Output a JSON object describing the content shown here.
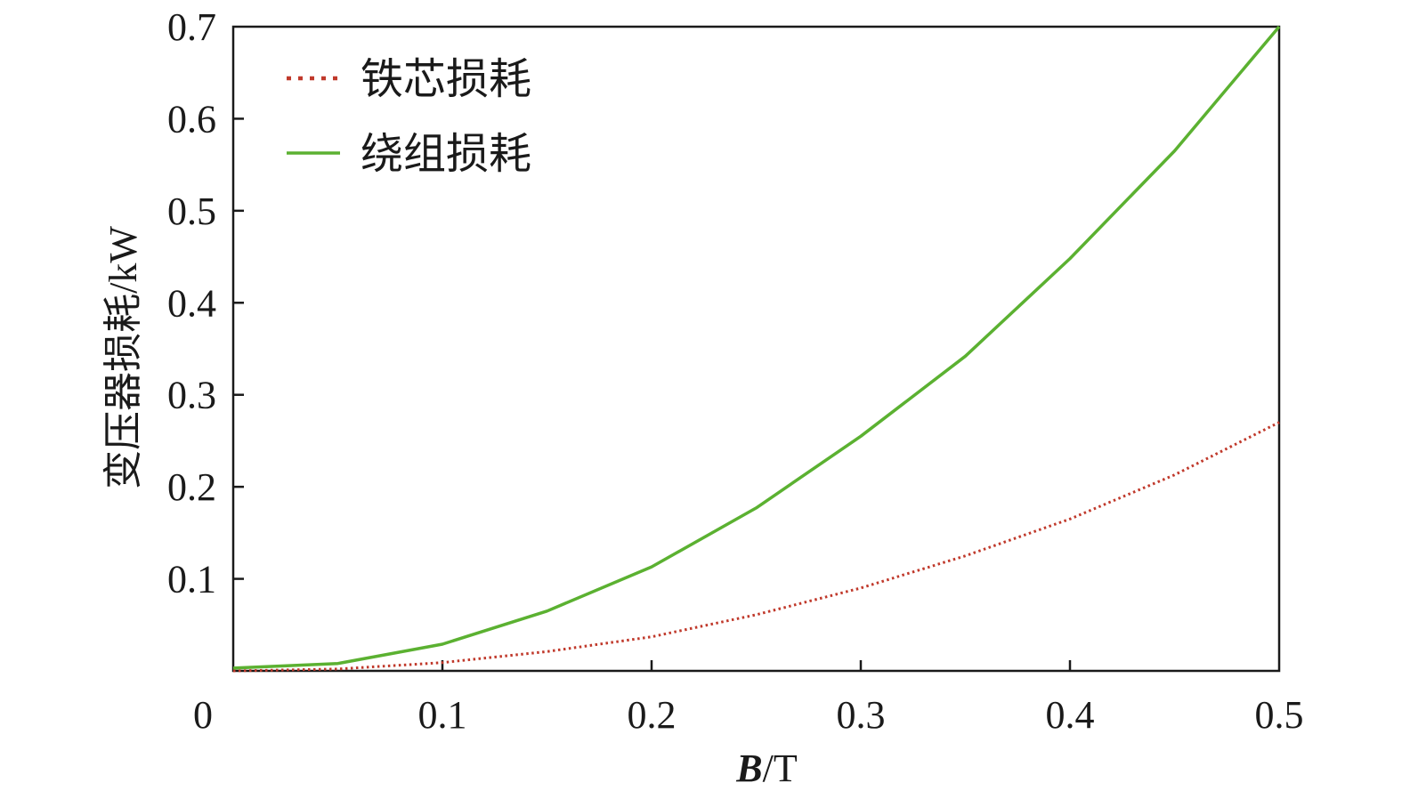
{
  "chart_data": {
    "type": "line",
    "xlabel": {
      "italic": "B",
      "rest": "/T"
    },
    "ylabel": "变压器损耗/kW",
    "xlim": [
      0,
      0.5
    ],
    "ylim": [
      0,
      0.7
    ],
    "xticks": [
      {
        "value": 0,
        "label": "0"
      },
      {
        "value": 0.1,
        "label": "0.1"
      },
      {
        "value": 0.2,
        "label": "0.2"
      },
      {
        "value": 0.3,
        "label": "0.3"
      },
      {
        "value": 0.4,
        "label": "0.4"
      },
      {
        "value": 0.5,
        "label": "0.5"
      }
    ],
    "yticks": [
      {
        "value": 0.1,
        "label": "0.1"
      },
      {
        "value": 0.2,
        "label": "0.2"
      },
      {
        "value": 0.3,
        "label": "0.3"
      },
      {
        "value": 0.4,
        "label": "0.4"
      },
      {
        "value": 0.5,
        "label": "0.5"
      },
      {
        "value": 0.6,
        "label": "0.6"
      },
      {
        "value": 0.7,
        "label": "0.7"
      }
    ],
    "grid": false,
    "legend_position": "top-left",
    "series": [
      {
        "name": "铁芯损耗",
        "style": "dotted",
        "color": "#c0392b",
        "x": [
          0,
          0.05,
          0.1,
          0.15,
          0.2,
          0.25,
          0.3,
          0.35,
          0.4,
          0.45,
          0.5
        ],
        "y": [
          0,
          0.002,
          0.009,
          0.021,
          0.037,
          0.061,
          0.09,
          0.125,
          0.165,
          0.213,
          0.27
        ]
      },
      {
        "name": "绕组损耗",
        "style": "solid",
        "color": "#5bb131",
        "x": [
          0,
          0.05,
          0.1,
          0.15,
          0.2,
          0.25,
          0.3,
          0.35,
          0.4,
          0.45,
          0.5
        ],
        "y": [
          0.003,
          0.008,
          0.029,
          0.065,
          0.113,
          0.177,
          0.255,
          0.342,
          0.448,
          0.565,
          0.7
        ]
      }
    ]
  }
}
